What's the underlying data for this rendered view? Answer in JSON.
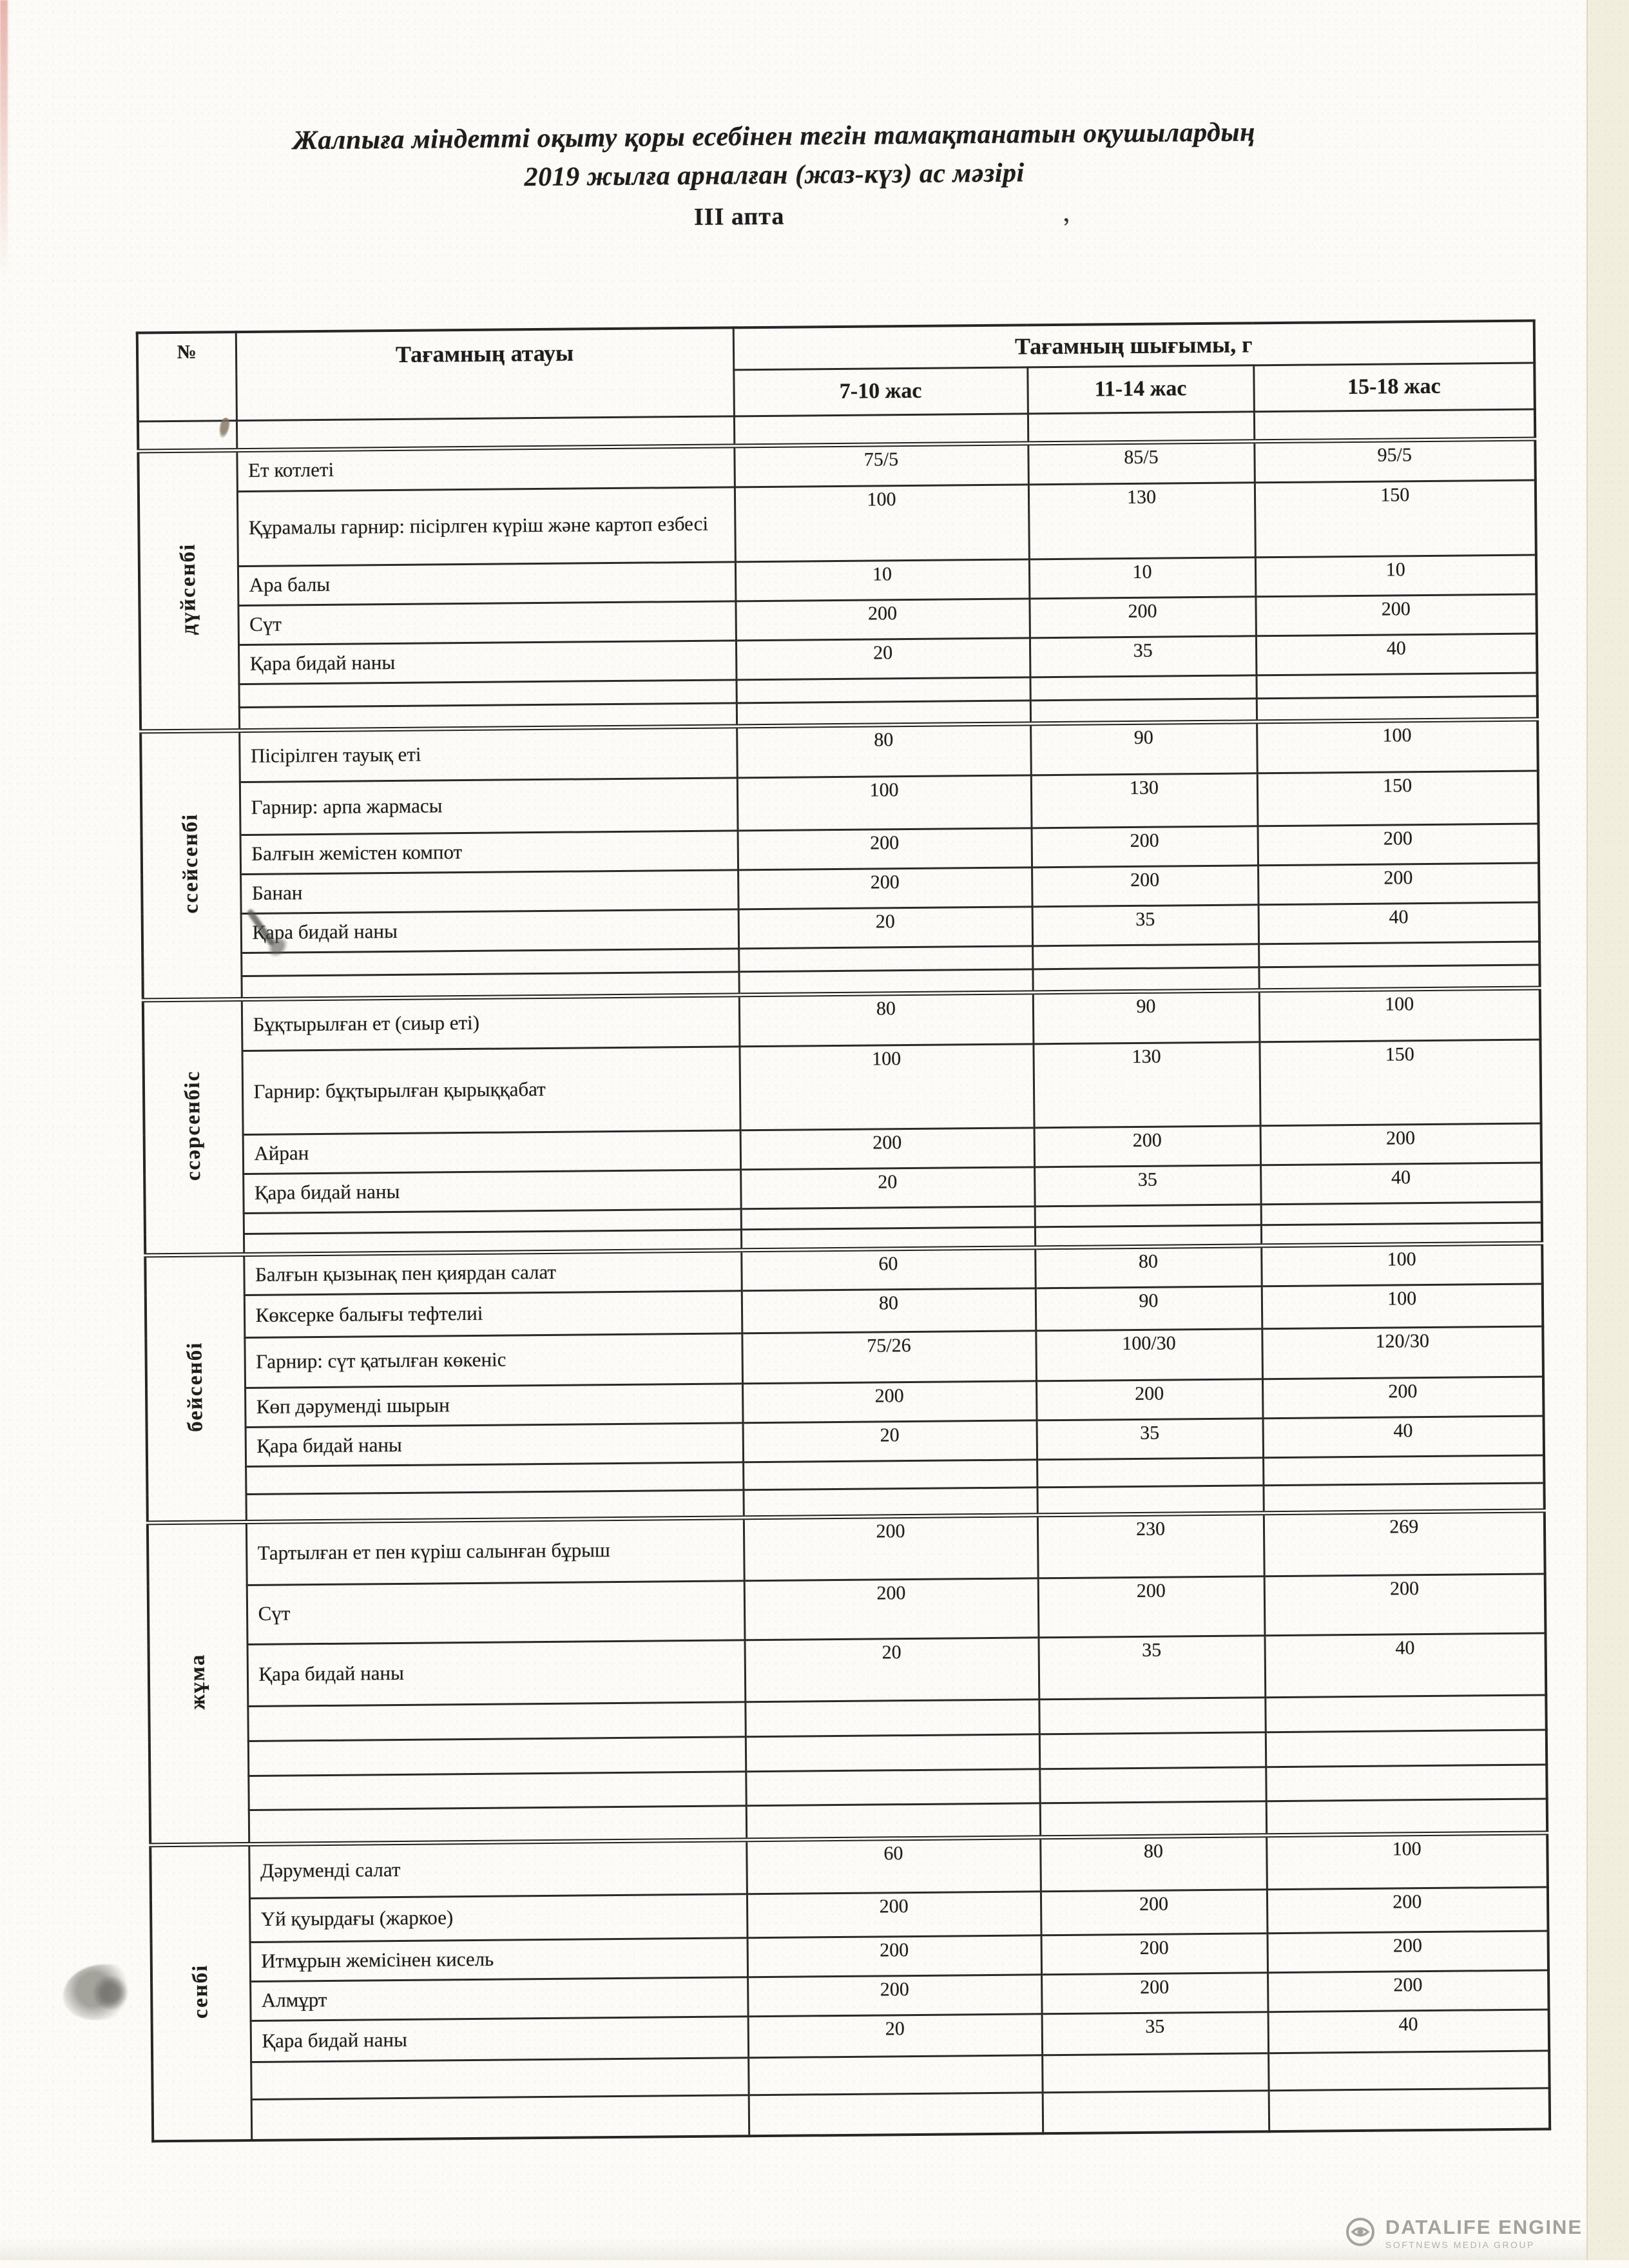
{
  "title": {
    "line1": "Жалпыға міндетті оқыту қоры есебінен тегін тамақтанатын оқушылардың",
    "line2": "2019 жылға арналған (жаз-күз) ас мәзірі",
    "line3": "III апта"
  },
  "table": {
    "headers": {
      "number": "№",
      "dish": "Тағамның атауы",
      "output": "Тағамның шығымы, г",
      "age_groups": [
        "7-10 жас",
        "11-14 жас",
        "15-18 жас"
      ]
    },
    "days": [
      {
        "label": "дүйсенбі",
        "rows": [
          {
            "dish": "Ет котлеті",
            "values": [
              "75/5",
              "85/5",
              "95/5"
            ]
          },
          {
            "dish": "Құрамалы гарнир: пісірлген күріш және картоп езбесі",
            "values": [
              "100",
              "130",
              "150"
            ]
          },
          {
            "dish": "Ара балы",
            "values": [
              "10",
              "10",
              "10"
            ]
          },
          {
            "dish": "Сүт",
            "values": [
              "200",
              "200",
              "200"
            ]
          },
          {
            "dish": "Қара бидай наны",
            "values": [
              "20",
              "35",
              "40"
            ]
          },
          {
            "dish": "",
            "values": [
              "",
              "",
              ""
            ]
          },
          {
            "dish": "",
            "values": [
              "",
              "",
              ""
            ]
          }
        ]
      },
      {
        "label": "ссейсенбі",
        "rows": [
          {
            "dish": "Пісірілген тауық еті",
            "values": [
              "80",
              "90",
              "100"
            ]
          },
          {
            "dish": "Гарнир: арпа жармасы",
            "values": [
              "100",
              "130",
              "150"
            ]
          },
          {
            "dish": "Балғын жемістен компот",
            "values": [
              "200",
              "200",
              "200"
            ]
          },
          {
            "dish": "Банан",
            "values": [
              "200",
              "200",
              "200"
            ]
          },
          {
            "dish": "Қара бидай наны",
            "values": [
              "20",
              "35",
              "40"
            ]
          },
          {
            "dish": "",
            "values": [
              "",
              "",
              ""
            ]
          },
          {
            "dish": "",
            "values": [
              "",
              "",
              ""
            ]
          }
        ]
      },
      {
        "label": "ссәрсенбіс",
        "rows": [
          {
            "dish": "Бұқтырылған ет (сиыр еті)",
            "values": [
              "80",
              "90",
              "100"
            ]
          },
          {
            "dish": "Гарнир: бұқтырылған қырыққабат",
            "values": [
              "100",
              "130",
              "150"
            ]
          },
          {
            "dish": "Айран",
            "values": [
              "200",
              "200",
              "200"
            ]
          },
          {
            "dish": "Қара бидай наны",
            "values": [
              "20",
              "35",
              "40"
            ]
          },
          {
            "dish": "",
            "values": [
              "",
              "",
              ""
            ]
          },
          {
            "dish": "",
            "values": [
              "",
              "",
              ""
            ]
          }
        ]
      },
      {
        "label": "бейсенбі",
        "rows": [
          {
            "dish": "Балғын қызынақ пен қиярдан салат",
            "values": [
              "60",
              "80",
              "100"
            ]
          },
          {
            "dish": "Көксерке балығы тефтелиі",
            "values": [
              "80",
              "90",
              "100"
            ]
          },
          {
            "dish": "Гарнир: сүт қатылған көкеніс",
            "values": [
              "75/26",
              "100/30",
              "120/30"
            ]
          },
          {
            "dish": "Көп дәруменді шырын",
            "values": [
              "200",
              "200",
              "200"
            ]
          },
          {
            "dish": "Қара бидай наны",
            "values": [
              "20",
              "35",
              "40"
            ]
          },
          {
            "dish": "",
            "values": [
              "",
              "",
              ""
            ]
          },
          {
            "dish": "",
            "values": [
              "",
              "",
              ""
            ]
          }
        ]
      },
      {
        "label": "жұма",
        "rows": [
          {
            "dish": "Тартылған ет пен күріш салынған бұрыш",
            "values": [
              "200",
              "230",
              "269"
            ]
          },
          {
            "dish": "Сүт",
            "values": [
              "200",
              "200",
              "200"
            ]
          },
          {
            "dish": "Қара бидай наны",
            "values": [
              "20",
              "35",
              "40"
            ]
          },
          {
            "dish": "",
            "values": [
              "",
              "",
              ""
            ]
          },
          {
            "dish": "",
            "values": [
              "",
              "",
              ""
            ]
          },
          {
            "dish": "",
            "values": [
              "",
              "",
              ""
            ]
          },
          {
            "dish": "",
            "values": [
              "",
              "",
              ""
            ]
          }
        ]
      },
      {
        "label": "сенбі",
        "rows": [
          {
            "dish": "Дәруменді салат",
            "values": [
              "60",
              "80",
              "100"
            ]
          },
          {
            "dish": "Үй қуырдағы (жаркое)",
            "values": [
              "200",
              "200",
              "200"
            ]
          },
          {
            "dish": "Итмұрын жемісінен кисель",
            "values": [
              "200",
              "200",
              "200"
            ]
          },
          {
            "dish": "Алмұрт",
            "values": [
              "200",
              "200",
              "200"
            ]
          },
          {
            "dish": "Қара бидай наны",
            "values": [
              "20",
              "35",
              "40"
            ]
          },
          {
            "dish": "",
            "values": [
              "",
              "",
              ""
            ]
          },
          {
            "dish": "",
            "values": [
              "",
              "",
              ""
            ]
          }
        ]
      }
    ]
  },
  "watermark": {
    "icon": "eye-logo-icon",
    "name": "DATALIFE ENGINE",
    "subtitle": "SOFTNEWS MEDIA GROUP"
  },
  "colors": {
    "paper": "#fcfbf7",
    "edge_strip": "#f2eedd",
    "ink": "#1d1d1d",
    "border": "#2a2a2a",
    "watermark_gray": "#a3a39c"
  }
}
